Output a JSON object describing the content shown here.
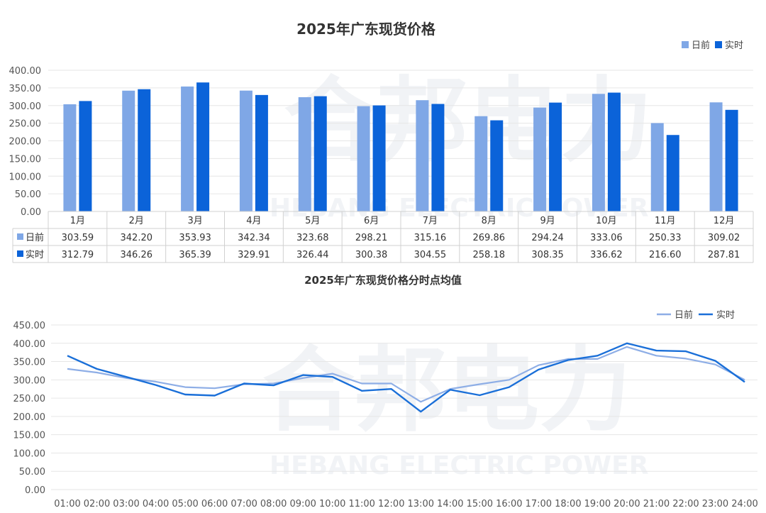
{
  "chart_data": [
    {
      "type": "bar",
      "title": "2025年广东现货价格",
      "categories": [
        "1月",
        "2月",
        "3月",
        "4月",
        "5月",
        "6月",
        "7月",
        "8月",
        "9月",
        "10月",
        "11月",
        "12月"
      ],
      "series": [
        {
          "name": "日前",
          "color": "#7fa7e6",
          "values": [
            303.59,
            342.2,
            353.93,
            342.34,
            323.68,
            298.21,
            315.16,
            269.86,
            294.24,
            333.06,
            250.33,
            309.02
          ]
        },
        {
          "name": "实时",
          "color": "#0b63d9",
          "values": [
            312.79,
            346.26,
            365.39,
            329.91,
            326.44,
            300.38,
            304.55,
            258.18,
            308.35,
            336.62,
            216.6,
            287.81
          ]
        }
      ],
      "table": {
        "rows": [
          {
            "name": "日前",
            "values": [
              "303.59",
              "342.20",
              "353.93",
              "342.34",
              "323.68",
              "298.21",
              "315.16",
              "269.86",
              "294.24",
              "333.06",
              "250.33",
              "309.02"
            ]
          },
          {
            "name": "实时",
            "values": [
              "312.79",
              "346.26",
              "365.39",
              "329.91",
              "326.44",
              "300.38",
              "304.55",
              "258.18",
              "308.35",
              "336.62",
              "216.60",
              "287.81"
            ]
          }
        ]
      },
      "ylim": [
        0,
        400
      ],
      "yticks": [
        "0.00",
        "50.00",
        "100.00",
        "150.00",
        "200.00",
        "250.00",
        "300.00",
        "350.00",
        "400.00"
      ],
      "legend": "top-right",
      "grid": true
    },
    {
      "type": "line",
      "title": "2025年广东现货价格分时点均值",
      "x": [
        "01:00",
        "02:00",
        "03:00",
        "04:00",
        "05:00",
        "06:00",
        "07:00",
        "08:00",
        "09:00",
        "10:00",
        "11:00",
        "12:00",
        "13:00",
        "14:00",
        "15:00",
        "16:00",
        "17:00",
        "18:00",
        "19:00",
        "20:00",
        "21:00",
        "22:00",
        "23:00",
        "24:00"
      ],
      "series": [
        {
          "name": "日前",
          "color": "#8eaee6",
          "values": [
            330,
            320,
            305,
            295,
            280,
            277,
            288,
            290,
            305,
            317,
            290,
            290,
            240,
            275,
            288,
            300,
            340,
            357,
            357,
            390,
            366,
            358,
            342,
            300
          ]
        },
        {
          "name": "实时",
          "color": "#1a6fd8",
          "values": [
            366,
            330,
            308,
            286,
            260,
            257,
            290,
            285,
            313,
            308,
            270,
            275,
            213,
            273,
            258,
            280,
            328,
            354,
            366,
            400,
            380,
            378,
            352,
            294
          ]
        }
      ],
      "ylim": [
        0,
        450
      ],
      "yticks": [
        "0.00",
        "50.00",
        "100.00",
        "150.00",
        "200.00",
        "250.00",
        "300.00",
        "350.00",
        "400.00",
        "450.00"
      ],
      "legend": "top-right",
      "grid": true
    }
  ],
  "watermark": {
    "text": "合邦电力",
    "subtext": "HEBANG ELECTRIC POWER"
  }
}
